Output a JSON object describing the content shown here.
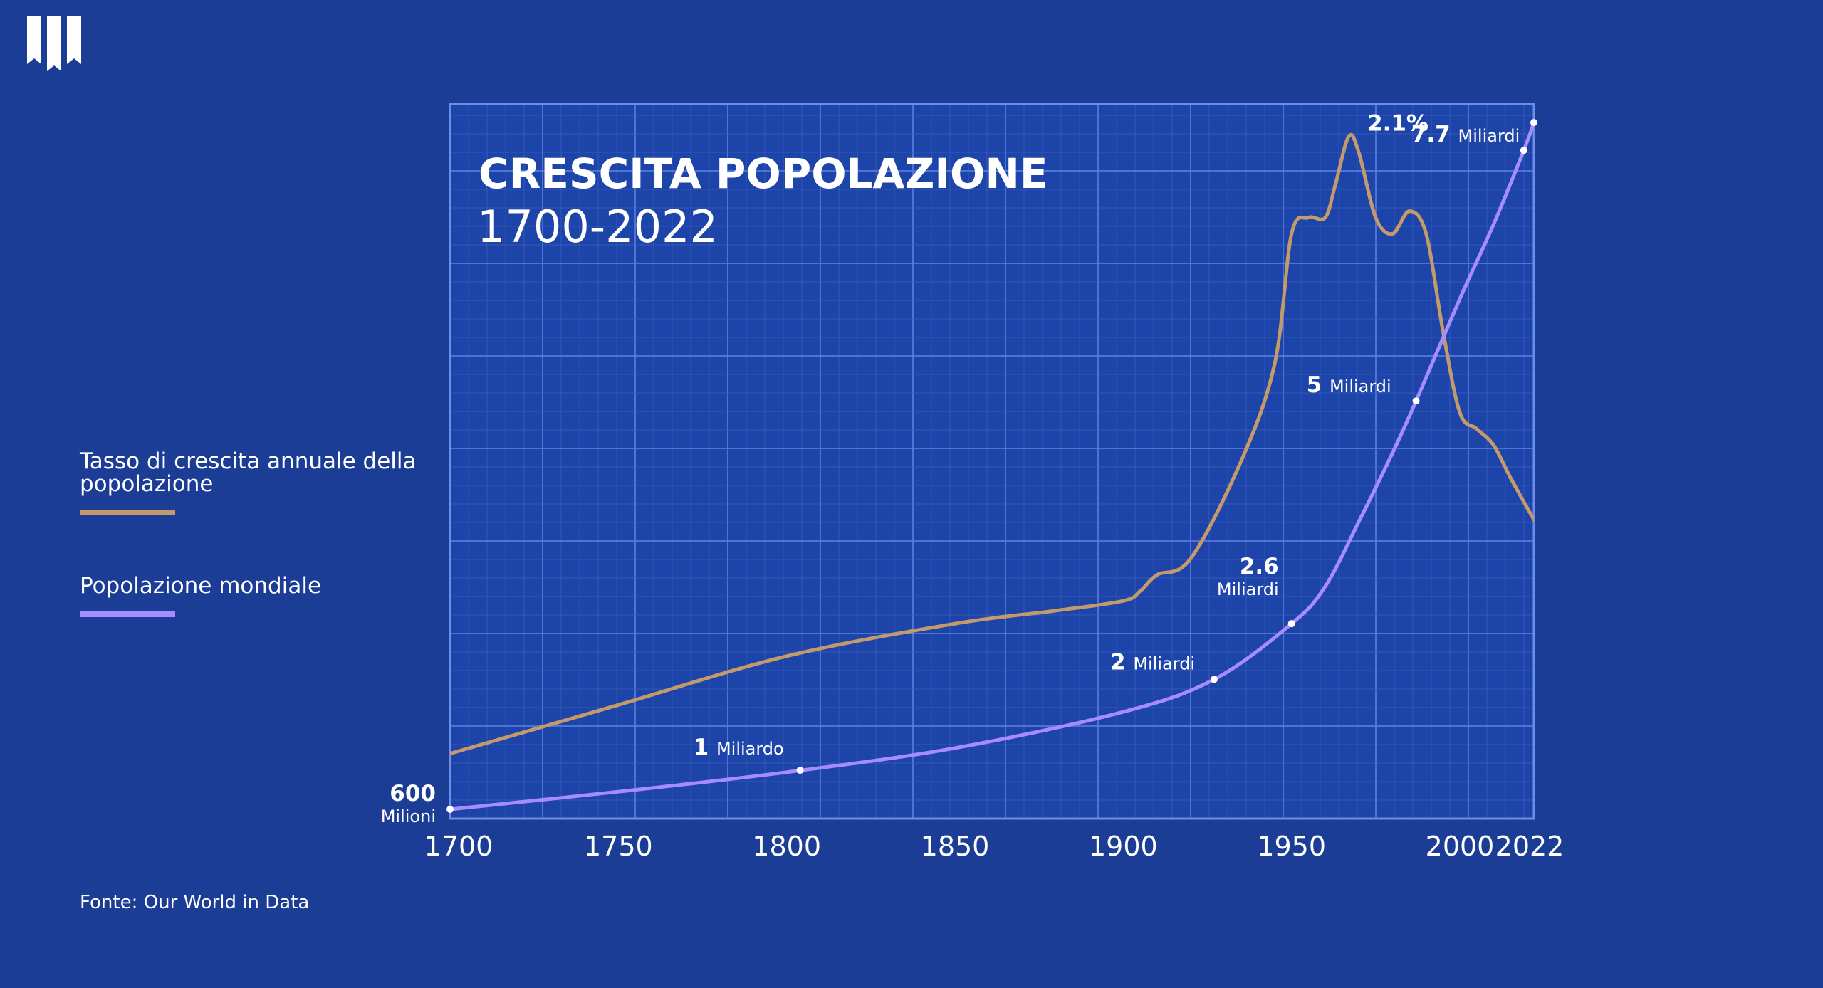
{
  "legend": {
    "growth_label": "Tasso di crescita annuale della popolazione",
    "population_label": "Popolazione mondiale"
  },
  "source": "Fonte: Our World in Data",
  "colors": {
    "background": "#1c3d96",
    "grid_minor": "#3a5cc0",
    "grid_major": "#5b7fe0",
    "growth": "#c49a6c",
    "population": "#a68cff",
    "text": "#ffffff"
  },
  "chart_data": {
    "type": "line",
    "title": "CRESCITA POPOLAZIONE",
    "subtitle": "1700-2022",
    "xlabel": "",
    "ylabel": "",
    "xlim": [
      1700,
      2022
    ],
    "x_ticks": [
      "1700",
      "1750",
      "1800",
      "1850",
      "1900",
      "1950",
      "2000",
      "2022"
    ],
    "grid": true,
    "legend_position": "left",
    "series": [
      {
        "name": "Tasso di crescita annuale della popolazione",
        "color": "#c49a6c",
        "unit": "%",
        "y_range": [
          0,
          2.2
        ],
        "x": [
          1700,
          1750,
          1800,
          1850,
          1880,
          1900,
          1905,
          1910,
          1920,
          1935,
          1945,
          1950,
          1955,
          1960,
          1963,
          1967,
          1970,
          1975,
          1980,
          1985,
          1990,
          1995,
          2000,
          2005,
          2010,
          2015,
          2022
        ],
        "y": [
          0.2,
          0.35,
          0.5,
          0.6,
          0.64,
          0.67,
          0.7,
          0.75,
          0.8,
          1.1,
          1.4,
          1.8,
          1.85,
          1.85,
          1.95,
          2.1,
          2.05,
          1.85,
          1.8,
          1.87,
          1.8,
          1.5,
          1.25,
          1.2,
          1.15,
          1.05,
          0.92
        ]
      },
      {
        "name": "Popolazione mondiale",
        "color": "#a68cff",
        "unit": "miliardi",
        "y_range": [
          0.5,
          8.2
        ],
        "x": [
          1700,
          1750,
          1800,
          1850,
          1900,
          1927,
          1950,
          1960,
          1970,
          1980,
          1987,
          2000,
          2010,
          2019,
          2022
        ],
        "y": [
          0.6,
          0.79,
          1.0,
          1.26,
          1.65,
          2.0,
          2.6,
          3.0,
          3.7,
          4.44,
          5.0,
          6.1,
          6.9,
          7.7,
          8.0
        ],
        "markers": [
          {
            "x": 1700,
            "label_value": "600",
            "label_unit": "Milioni"
          },
          {
            "x": 1804,
            "label_value": "1",
            "label_unit": "Miliardo"
          },
          {
            "x": 1927,
            "label_value": "2",
            "label_unit": "Miliardi"
          },
          {
            "x": 1950,
            "label_value": "2.6",
            "label_unit": "Miliardi"
          },
          {
            "x": 1987,
            "label_value": "5",
            "label_unit": "Miliardi"
          },
          {
            "x": 2019,
            "label_value": "7.7",
            "label_unit": "Miliardi"
          },
          {
            "x": 2022,
            "label_value": "",
            "label_unit": ""
          }
        ]
      }
    ],
    "annotations": [
      {
        "series": 0,
        "x": 1967,
        "text": "2.1%"
      }
    ]
  }
}
